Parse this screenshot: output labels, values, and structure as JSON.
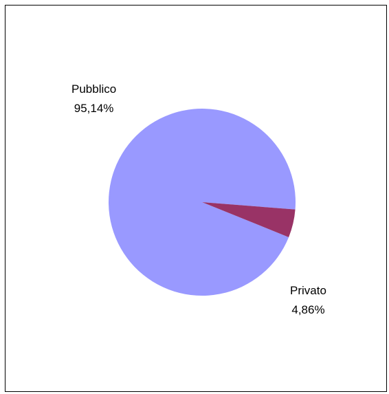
{
  "chart_data": {
    "type": "pie",
    "title": "",
    "slices": [
      {
        "label": "Pubblico",
        "value": 95.14,
        "value_label": "95,14%",
        "color": "#9999ff"
      },
      {
        "label": "Privato",
        "value": 4.86,
        "value_label": "4,86%",
        "color": "#993366"
      }
    ],
    "legend": "none"
  }
}
